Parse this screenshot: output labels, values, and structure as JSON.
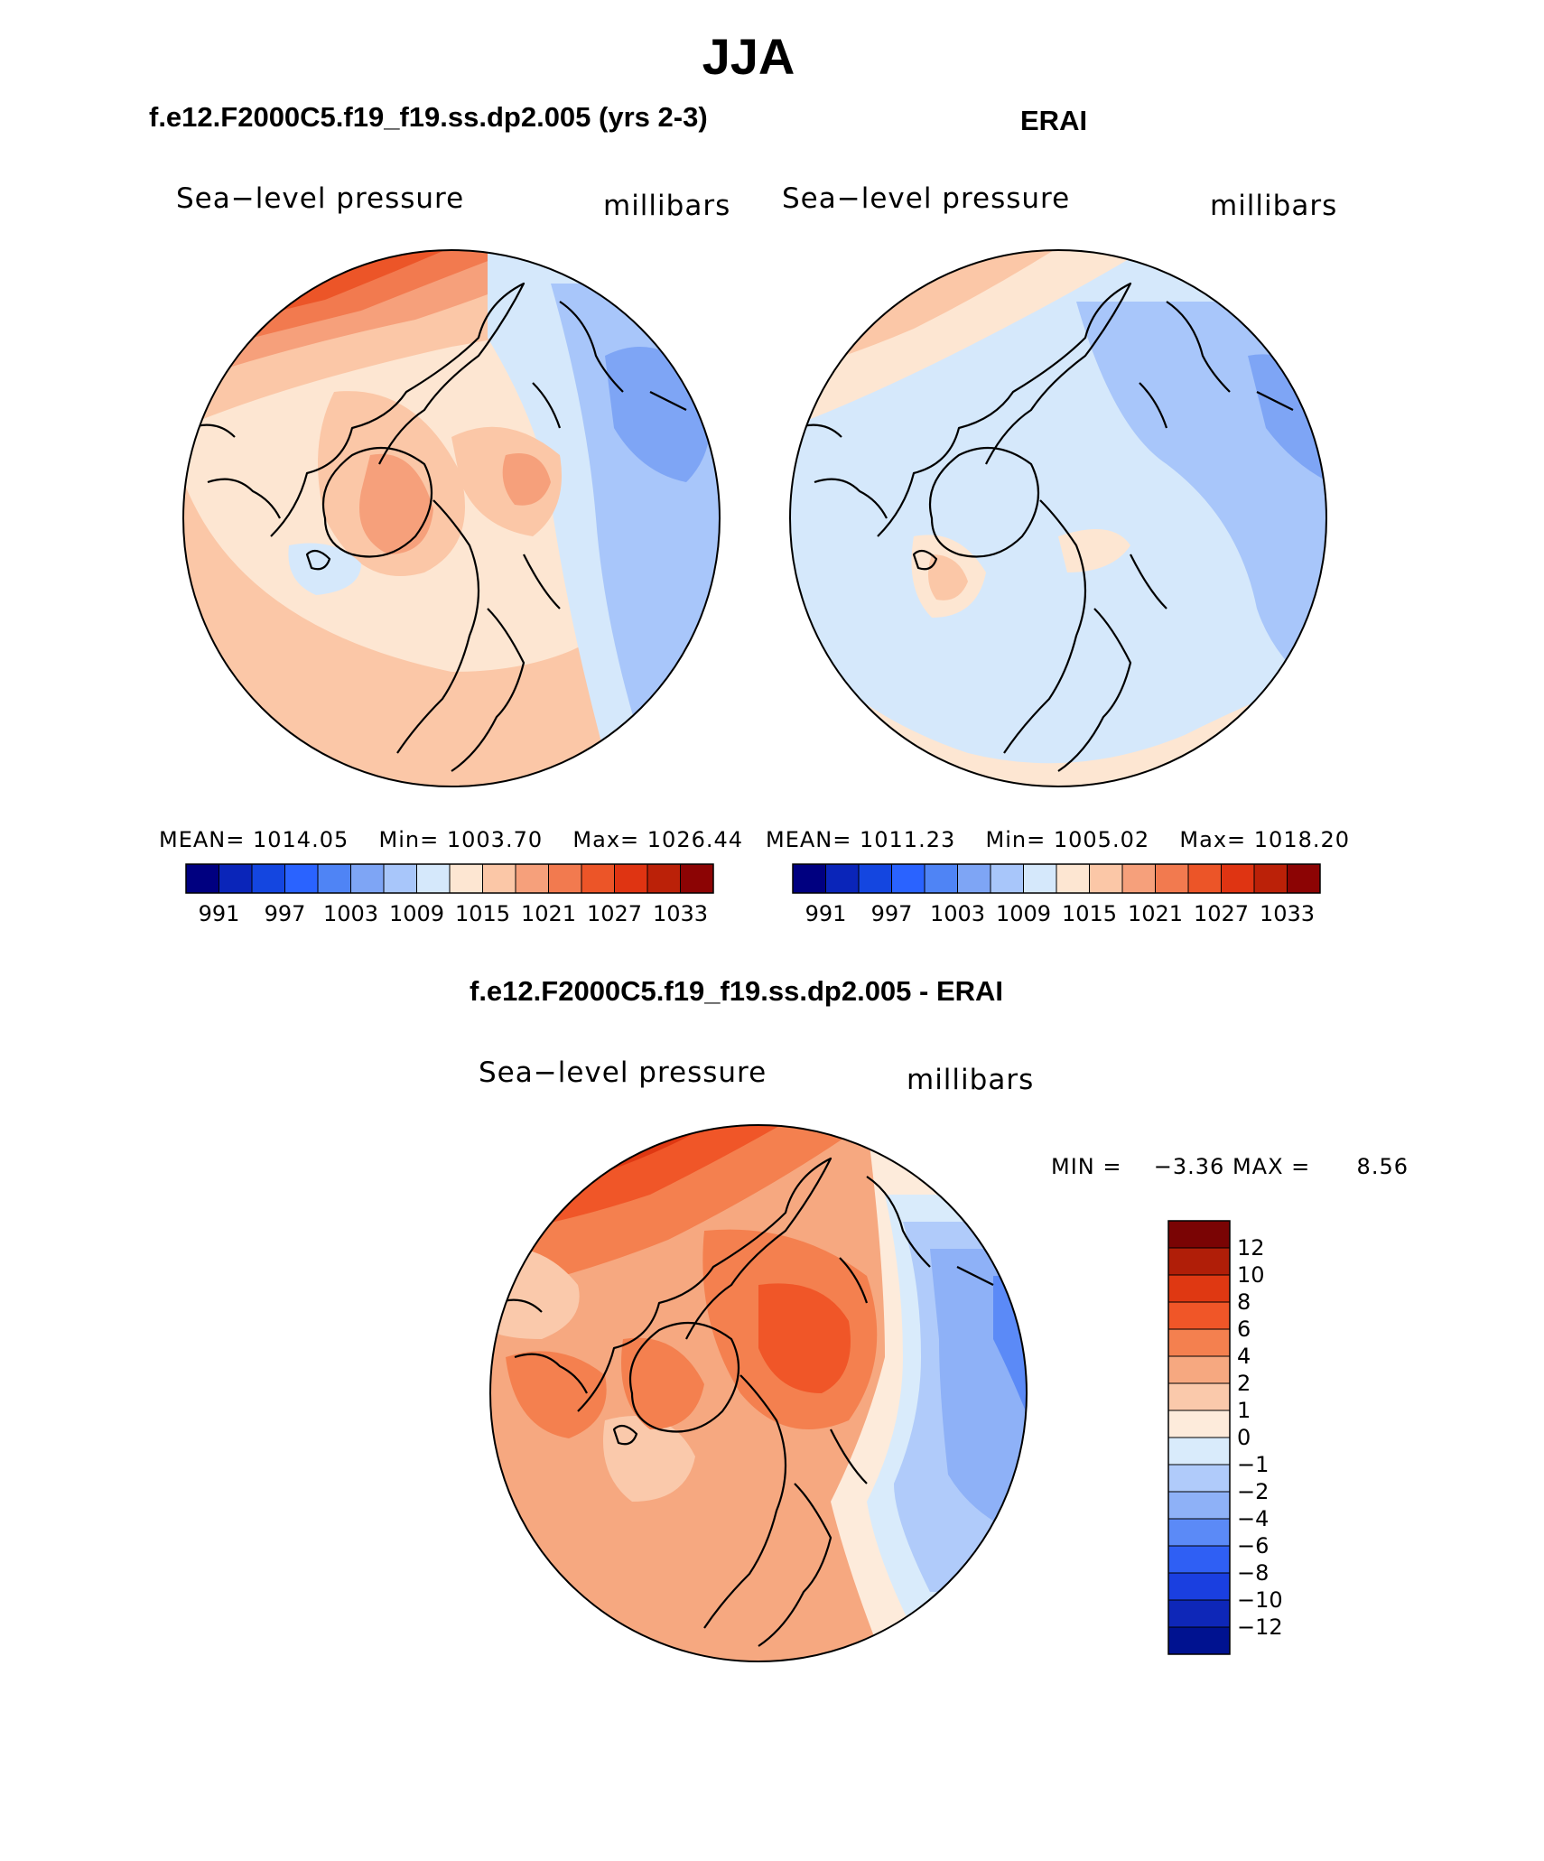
{
  "title": "JJA",
  "panels": [
    {
      "id": "model",
      "title": "f.e12.F2000C5.f19_f19.ss.dp2.005 (yrs 2-3)",
      "variable": "Sea−level pressure",
      "units": "millibars",
      "stats": {
        "mean_label": "MEAN=",
        "mean": "1014.05",
        "min_label": "Min=",
        "min": "1003.70",
        "max_label": "Max=",
        "max": "1026.44"
      }
    },
    {
      "id": "obs",
      "title": "ERAI",
      "variable": "Sea−level pressure",
      "units": "millibars",
      "stats": {
        "mean_label": "MEAN=",
        "mean": "1011.23",
        "min_label": "Min=",
        "min": "1005.02",
        "max_label": "Max=",
        "max": "1018.20"
      }
    },
    {
      "id": "diff",
      "title": "f.e12.F2000C5.f19_f19.ss.dp2.005 - ERAI",
      "variable": "Sea−level pressure",
      "units": "millibars",
      "stats": {
        "min_label": "MIN =",
        "min": "−3.36",
        "max_label": "MAX =",
        "max": "8.56"
      }
    }
  ],
  "colorbar_abs": {
    "colors": [
      "#000080",
      "#0a25b9",
      "#1446e0",
      "#2a63ff",
      "#4f84f5",
      "#7ea5f5",
      "#a8c6fa",
      "#d5e8fb",
      "#fde6d2",
      "#fbc7a7",
      "#f6a07b",
      "#f27a4f",
      "#ec5528",
      "#df3412",
      "#bb2108",
      "#8c0404"
    ],
    "tick_labels": [
      "991",
      "997",
      "1003",
      "1009",
      "1015",
      "1021",
      "1027",
      "1033"
    ]
  },
  "colorbar_diff": {
    "colors": [
      "#7a0404",
      "#b01e08",
      "#df3812",
      "#f05628",
      "#f4804f",
      "#f6a880",
      "#fac9ab",
      "#fdebdb",
      "#d9ebfb",
      "#b0cbfa",
      "#8eb1f7",
      "#5b8af7",
      "#2f5ff4",
      "#1a3fe0",
      "#0e27b8",
      "#001290"
    ],
    "tick_labels": [
      "12",
      "10",
      "8",
      "6",
      "4",
      "2",
      "1",
      "0",
      "−1",
      "−2",
      "−4",
      "−6",
      "−8",
      "−10",
      "−12"
    ]
  },
  "map_colors": {
    "model": {
      "base": "#fde6d2",
      "light_blue": "#d5e8fb",
      "blue": "#a8c6fa",
      "blue2": "#7ea5f5",
      "salmon": "#fbc7a7",
      "orange": "#f6a07b",
      "red": "#f27a4f",
      "red2": "#ec5528"
    },
    "obs": {
      "base": "#d5e8fb",
      "blue": "#a8c6fa",
      "blue2": "#7ea5f5",
      "cream": "#fde6d2",
      "salmon": "#fbc7a7",
      "orange": "#f6a07b"
    },
    "diff": {
      "base": "#f6a880",
      "light": "#fac9ab",
      "cream": "#fdebdb",
      "orange": "#f4804f",
      "red": "#f05628",
      "red2": "#df3812",
      "lightblue": "#d9ebfb",
      "blue": "#b0cbfa",
      "blue2": "#8eb1f7",
      "blue3": "#5b8af7"
    }
  }
}
